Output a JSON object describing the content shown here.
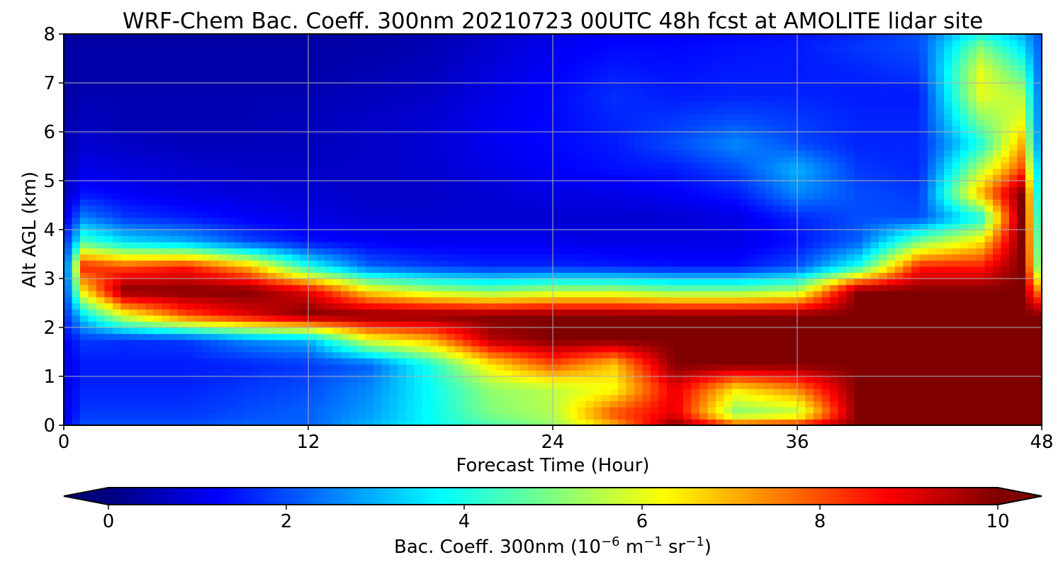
{
  "chart_data": {
    "type": "heatmap",
    "title": "WRF-Chem Bac. Coeff. 300nm  20210723 00UTC 48h fcst at AMOLITE lidar site",
    "xlabel": "Forecast Time (Hour)",
    "ylabel": "Alt AGL (km)",
    "xlim": [
      0,
      48
    ],
    "ylim": [
      0,
      8
    ],
    "xticks": [
      "0",
      "12",
      "24",
      "36",
      "48"
    ],
    "yticks": [
      "0",
      "1",
      "2",
      "3",
      "4",
      "5",
      "6",
      "7",
      "8"
    ],
    "grid": true,
    "colormap": "jet",
    "colorbar": {
      "label_main": "Bac. Coeff. 300nm  (10",
      "label_exp1": "−6",
      "label_mid": " m",
      "label_exp2": "−1",
      "label_mid2": " sr",
      "label_exp3": "−1",
      "label_end": ")",
      "range": [
        0,
        10
      ],
      "extend": "both",
      "ticks": [
        "0",
        "2",
        "4",
        "6",
        "8",
        "10"
      ]
    },
    "x": [
      0,
      1,
      3,
      6,
      9,
      12,
      15,
      18,
      21,
      24,
      27,
      30,
      33,
      36,
      39,
      42,
      45,
      47,
      48
    ],
    "y": [
      0,
      0.25,
      0.75,
      1.25,
      1.75,
      2.25,
      2.75,
      3.25,
      3.75,
      4.25,
      4.75,
      5.25,
      5.75,
      6.25,
      6.75,
      7.25,
      7.75,
      8
    ],
    "z": [
      [
        1.2,
        2.0,
        2.0,
        2.0,
        2.2,
        2.2,
        3.0,
        3.8,
        4.5,
        5.2,
        7.0,
        10,
        8.0,
        8.5,
        10,
        10,
        10,
        10,
        10
      ],
      [
        1.0,
        1.8,
        1.8,
        1.8,
        2.0,
        2.2,
        2.8,
        3.8,
        5.0,
        5.5,
        8.0,
        9.0,
        5.0,
        5.5,
        10,
        10,
        10,
        10,
        10
      ],
      [
        1.0,
        1.6,
        1.6,
        1.6,
        1.8,
        2.0,
        2.6,
        3.8,
        5.2,
        5.6,
        6.2,
        9.0,
        6.5,
        7.5,
        10,
        10,
        10,
        10,
        10
      ],
      [
        1.0,
        1.5,
        1.5,
        1.5,
        1.6,
        1.8,
        2.2,
        4.0,
        6.5,
        8.0,
        6.8,
        10,
        10,
        10,
        10,
        10,
        10,
        10,
        10
      ],
      [
        1.2,
        1.8,
        1.7,
        1.8,
        2.6,
        3.0,
        6.0,
        7.0,
        9.5,
        10,
        10,
        10,
        10,
        10,
        10,
        10,
        10,
        10,
        10
      ],
      [
        1.5,
        3.5,
        6.0,
        8.0,
        9.0,
        10,
        10,
        10,
        10,
        10,
        10,
        10,
        10,
        10,
        10,
        10,
        10,
        10,
        10
      ],
      [
        1.5,
        6.5,
        10,
        10,
        10,
        9.0,
        6.5,
        5.5,
        5.0,
        5.5,
        5.5,
        5.0,
        5.0,
        5.5,
        10,
        10,
        10,
        10,
        7.0
      ],
      [
        1.5,
        8.5,
        8.0,
        8.5,
        7.0,
        4.0,
        2.2,
        1.8,
        1.6,
        1.6,
        1.5,
        1.4,
        1.4,
        2.0,
        4.0,
        8.5,
        8.5,
        10,
        4.0
      ],
      [
        1.4,
        4.5,
        3.5,
        3.0,
        2.0,
        1.4,
        1.2,
        1.1,
        1.1,
        1.1,
        1.0,
        1.0,
        1.0,
        1.4,
        2.2,
        5.0,
        6.5,
        10,
        3.5
      ],
      [
        1.0,
        2.5,
        1.8,
        1.5,
        1.2,
        1.0,
        0.8,
        0.8,
        0.8,
        0.8,
        0.8,
        0.8,
        1.0,
        1.6,
        2.0,
        2.0,
        4.0,
        10,
        3.0
      ],
      [
        0.6,
        1.4,
        1.2,
        1.0,
        0.9,
        0.8,
        0.7,
        0.7,
        0.8,
        1.0,
        1.0,
        1.2,
        1.5,
        2.6,
        2.0,
        1.8,
        7.0,
        10,
        2.5
      ],
      [
        0.5,
        1.0,
        0.9,
        0.8,
        0.7,
        0.7,
        0.7,
        0.8,
        1.0,
        1.2,
        1.4,
        1.5,
        2.0,
        3.0,
        1.8,
        1.6,
        5.5,
        8.0,
        2.5
      ],
      [
        0.4,
        0.8,
        0.7,
        0.6,
        0.6,
        0.6,
        0.7,
        0.8,
        1.1,
        1.3,
        1.5,
        2.0,
        2.6,
        2.0,
        1.6,
        1.6,
        4.0,
        7.0,
        2.0
      ],
      [
        0.4,
        0.6,
        0.5,
        0.5,
        0.5,
        0.6,
        0.7,
        0.8,
        1.1,
        1.3,
        1.6,
        1.8,
        2.0,
        1.8,
        1.6,
        1.6,
        5.0,
        6.0,
        2.0
      ],
      [
        0.3,
        0.5,
        0.5,
        0.5,
        0.5,
        0.5,
        0.6,
        0.7,
        1.0,
        1.3,
        1.7,
        1.5,
        1.6,
        1.6,
        1.5,
        1.5,
        6.0,
        5.5,
        2.0
      ],
      [
        0.3,
        0.4,
        0.4,
        0.4,
        0.4,
        0.4,
        0.5,
        0.6,
        0.9,
        1.2,
        1.5,
        1.4,
        1.5,
        1.5,
        1.6,
        1.8,
        6.0,
        4.5,
        2.0
      ],
      [
        0.3,
        0.4,
        0.4,
        0.4,
        0.4,
        0.4,
        0.4,
        0.5,
        0.8,
        1.1,
        1.3,
        1.3,
        1.4,
        1.5,
        1.8,
        2.0,
        5.0,
        3.5,
        2.0
      ],
      [
        0.3,
        0.3,
        0.3,
        0.3,
        0.3,
        0.3,
        0.4,
        0.5,
        0.7,
        1.0,
        1.2,
        1.2,
        1.3,
        1.4,
        1.6,
        2.0,
        4.0,
        3.0,
        2.0
      ]
    ]
  }
}
